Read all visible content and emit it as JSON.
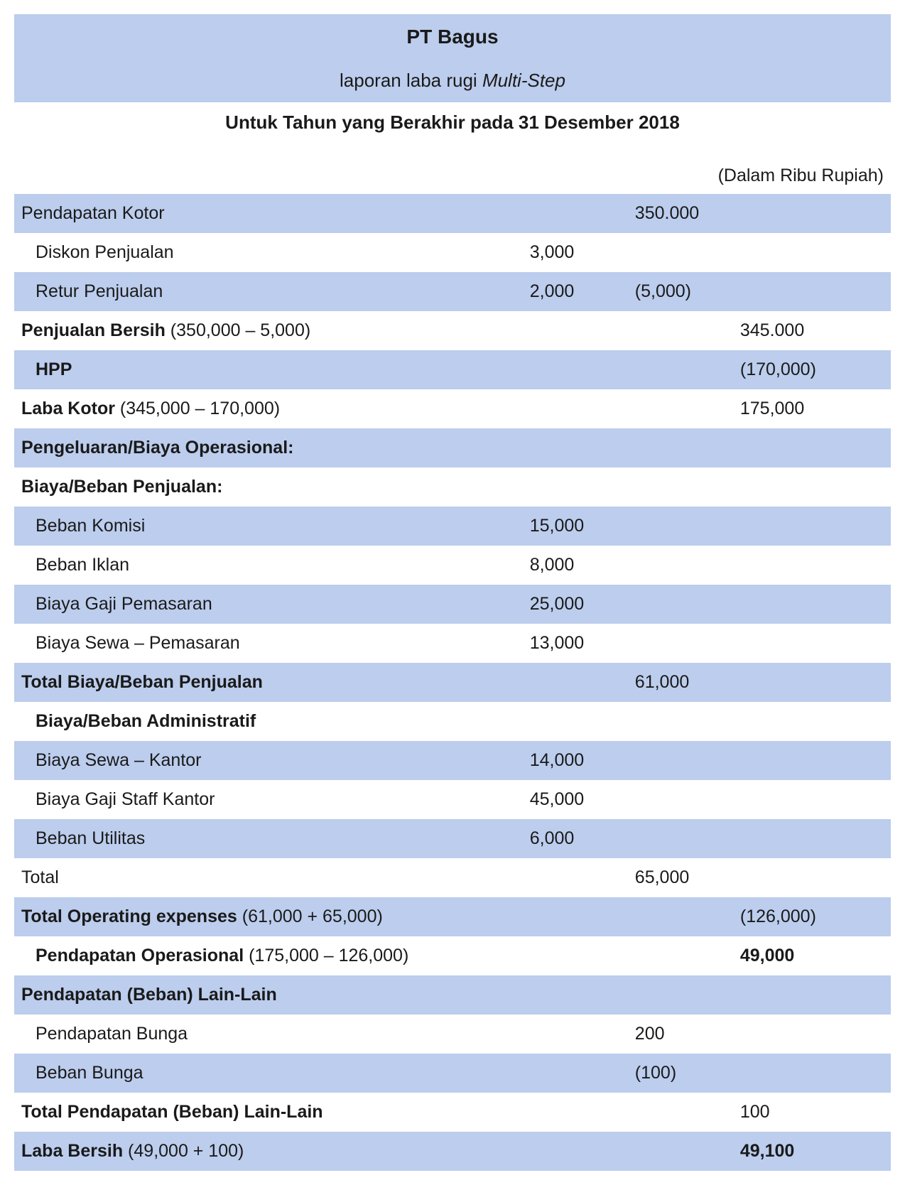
{
  "header": {
    "company": "PT Bagus",
    "report_prefix": "laporan laba rugi ",
    "report_italic": "Multi-Step",
    "period": "Untuk Tahun yang Berakhir pada 31 Desember 2018",
    "unit": "(Dalam Ribu Rupiah)"
  },
  "table": {
    "type": "table",
    "background_color": "#ffffff",
    "shade_color": "#bccded",
    "text_color": "#1a1a1a",
    "font_size": 25,
    "rows": [
      {
        "shade": true,
        "label": "Pendapatan Kotor",
        "a": "",
        "b": "350.000",
        "c": ""
      },
      {
        "shade": false,
        "indent": 1,
        "label": "Diskon Penjualan",
        "a": "3,000",
        "b": "",
        "c": ""
      },
      {
        "shade": true,
        "indent": 1,
        "label": "Retur Penjualan",
        "a": "2,000",
        "b": "(5,000)",
        "c": ""
      },
      {
        "shade": false,
        "label_bold": "Penjualan Bersih",
        "label_paren": " (350,000 – 5,000)",
        "a": "",
        "b": "",
        "c": "345.000"
      },
      {
        "shade": true,
        "indent": 1,
        "label_bold": "HPP",
        "a": "",
        "b": "",
        "c": "(170,000)"
      },
      {
        "shade": false,
        "label_bold": "Laba Kotor",
        "label_paren": " (345,000 – 170,000)",
        "a": "",
        "b": "",
        "c": "175,000"
      },
      {
        "shade": true,
        "label_bold": "Pengeluaran/Biaya Operasional:",
        "a": "",
        "b": "",
        "c": ""
      },
      {
        "shade": false,
        "label_bold": "Biaya/Beban Penjualan:",
        "a": "",
        "b": "",
        "c": ""
      },
      {
        "shade": true,
        "indent": 1,
        "label": "Beban Komisi",
        "a": "15,000",
        "b": "",
        "c": ""
      },
      {
        "shade": false,
        "indent": 1,
        "label": "Beban Iklan",
        "a": "8,000",
        "b": "",
        "c": ""
      },
      {
        "shade": true,
        "indent": 1,
        "label": "Biaya Gaji Pemasaran",
        "a": "25,000",
        "b": "",
        "c": ""
      },
      {
        "shade": false,
        "indent": 1,
        "label": "Biaya Sewa – Pemasaran",
        "a": "13,000",
        "b": "",
        "c": ""
      },
      {
        "shade": true,
        "label_bold": "Total Biaya/Beban Penjualan",
        "a": "",
        "b": "61,000",
        "c": ""
      },
      {
        "shade": false,
        "indent": 1,
        "label_bold": "Biaya/Beban Administratif",
        "a": "",
        "b": "",
        "c": ""
      },
      {
        "shade": true,
        "indent": 1,
        "label": "Biaya Sewa – Kantor",
        "a": "14,000",
        "b": "",
        "c": ""
      },
      {
        "shade": false,
        "indent": 1,
        "label": "Biaya Gaji Staff Kantor",
        "a": "45,000",
        "b": "",
        "c": ""
      },
      {
        "shade": true,
        "indent": 1,
        "label": "Beban Utilitas",
        "a": "6,000",
        "b": "",
        "c": ""
      },
      {
        "shade": false,
        "label": "Total",
        "a": "",
        "b": "65,000",
        "c": ""
      },
      {
        "shade": true,
        "label_bold": "Total Operating expenses",
        "label_paren": " (61,000 + 65,000)",
        "a": "",
        "b": "",
        "c": "(126,000)"
      },
      {
        "shade": false,
        "indent": 1,
        "label_bold": "Pendapatan Operasional",
        "label_paren": " (175,000 – 126,000)",
        "a": "",
        "b": "",
        "c": "49,000",
        "c_bold": true
      },
      {
        "shade": true,
        "label_bold": "Pendapatan (Beban) Lain-Lain",
        "a": "",
        "b": "",
        "c": ""
      },
      {
        "shade": false,
        "indent": 1,
        "label": "Pendapatan Bunga",
        "a": "",
        "b": "200",
        "c": ""
      },
      {
        "shade": true,
        "indent": 1,
        "label": "Beban Bunga",
        "a": "",
        "b": "(100)",
        "c": ""
      },
      {
        "shade": false,
        "label_bold": "Total Pendapatan (Beban) Lain-Lain",
        "a": "",
        "b": "",
        "c": "100"
      },
      {
        "shade": true,
        "label_bold": "Laba Bersih",
        "label_paren": " (49,000 + 100)",
        "a": "",
        "b": "",
        "c": "49,100",
        "c_bold": true
      }
    ]
  }
}
